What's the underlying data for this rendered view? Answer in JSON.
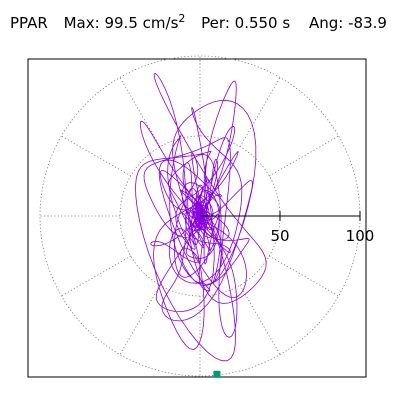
{
  "header": {
    "component": "PPAR",
    "max_label": "Max:",
    "max_value": "99.5",
    "max_unit": "cm/s",
    "max_unit_exp": "2",
    "period_label": "Per:",
    "period_value": "0.550",
    "period_unit": "s",
    "angle_label": "Ang:",
    "angle_value": "-83.9"
  },
  "chart_data": {
    "type": "polar-orbit",
    "max_amplitude": 99.5,
    "max_unit": "cm/s2",
    "period_s": 0.55,
    "angle_deg": -83.9,
    "radial_ticks": [
      50,
      100
    ],
    "radial_tick_labels": [
      "50",
      "100"
    ],
    "ring_values": [
      50,
      100
    ],
    "spoke_angles_deg": [
      0,
      30,
      60,
      90,
      120,
      150,
      180,
      210,
      240,
      270,
      300,
      330
    ],
    "peak_marker": {
      "angle_deg": -83.9,
      "radius": 99.5
    },
    "colors": {
      "trace": "#8800dd",
      "grid": "#777777",
      "marker": "#009977",
      "axis": "#000000"
    }
  }
}
